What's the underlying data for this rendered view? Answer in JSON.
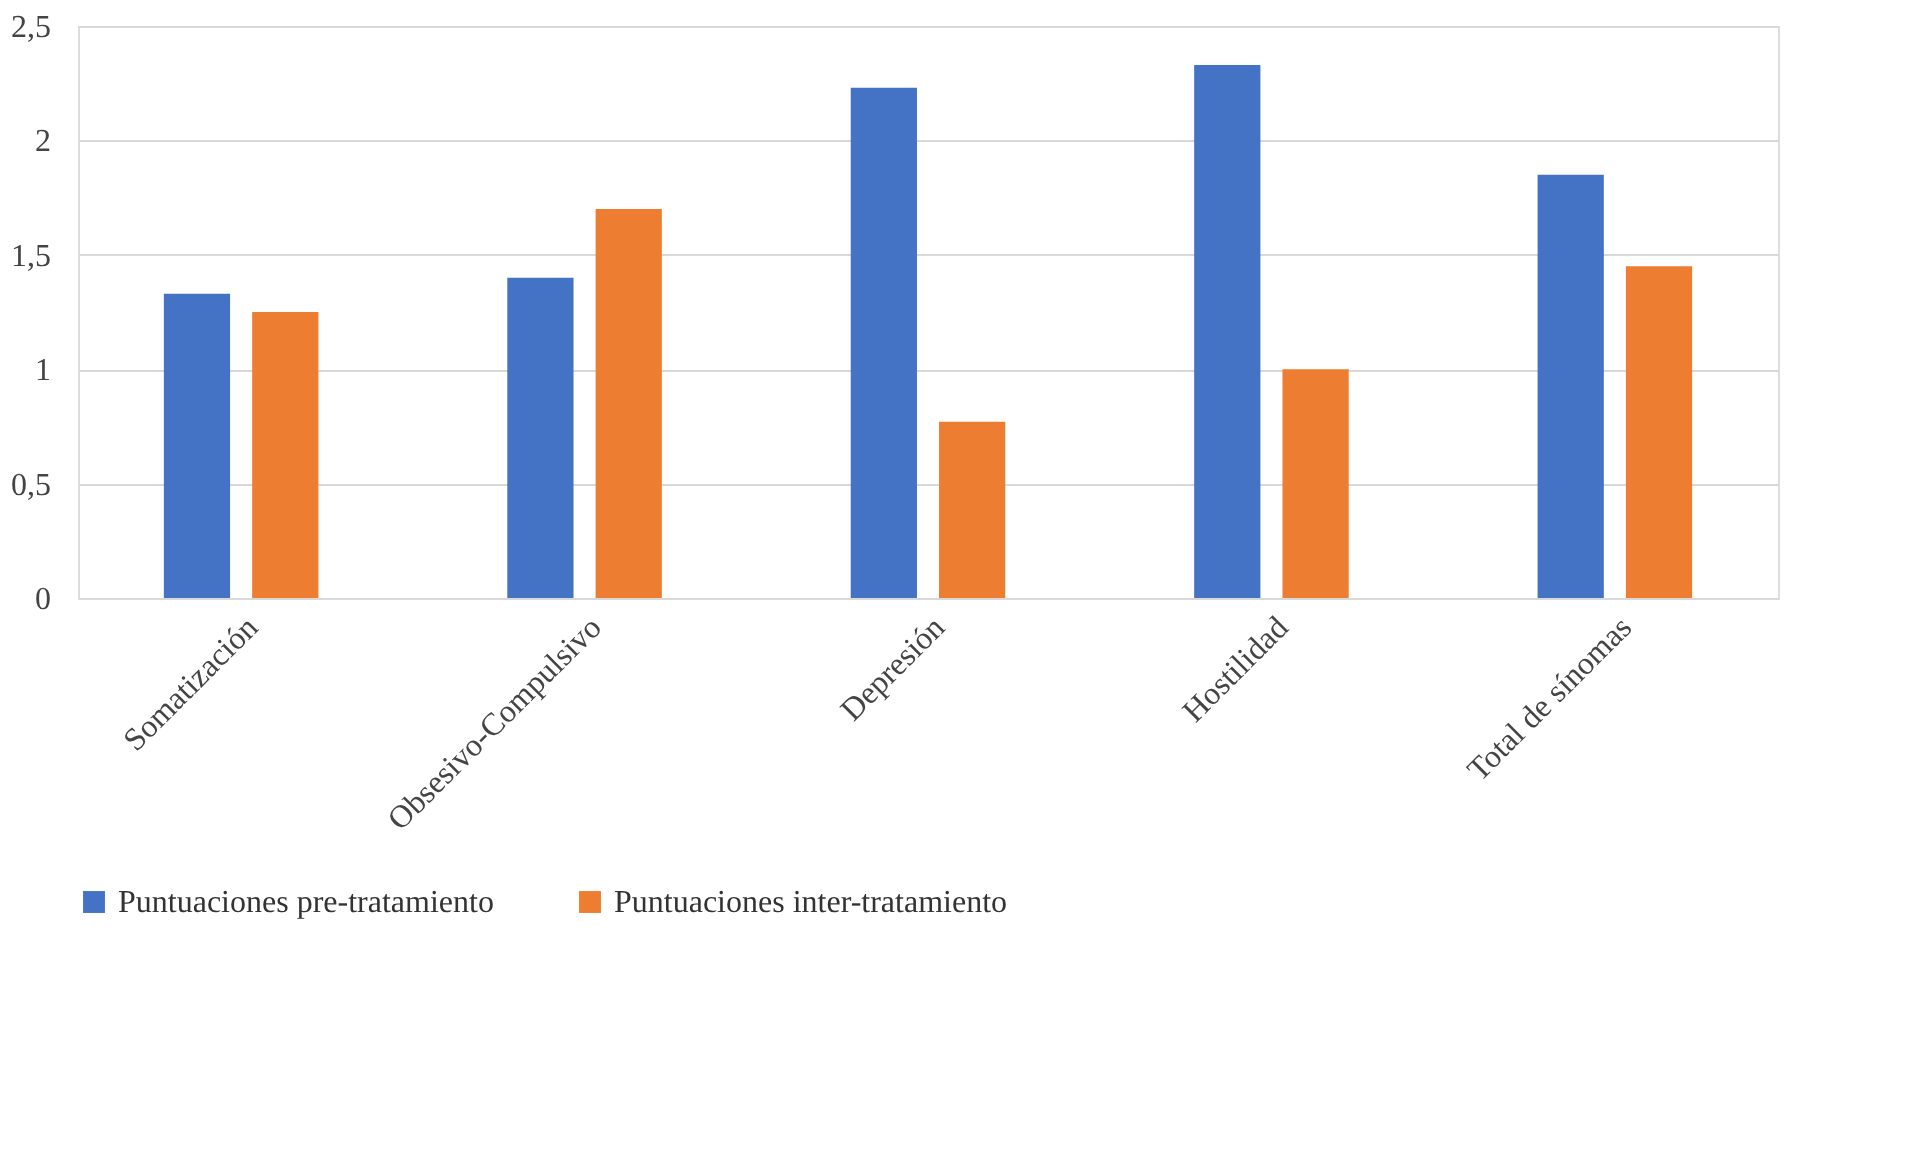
{
  "chart_data": {
    "type": "bar",
    "categories": [
      "Somatización",
      "Obsesivo-Compulsivo",
      "Depresión",
      "Hostilidad",
      "Total de sínomas"
    ],
    "series": [
      {
        "name": "Puntuaciones pre-tratamiento",
        "color": "#4472c4",
        "values": [
          1.33,
          1.4,
          2.23,
          2.33,
          1.85
        ]
      },
      {
        "name": "Puntuaciones inter-tratamiento",
        "color": "#ed7d31",
        "values": [
          1.25,
          1.7,
          0.77,
          1.0,
          1.45
        ]
      }
    ],
    "ylim": [
      0,
      2.5
    ],
    "yticks": [
      0,
      {
        "value": 0.5,
        "label": "0,5"
      },
      1,
      {
        "value": 1.5,
        "label": "1,5"
      },
      2,
      {
        "value": 2.5,
        "label": "2,5"
      }
    ],
    "grid": "y",
    "legend": "bottom"
  }
}
